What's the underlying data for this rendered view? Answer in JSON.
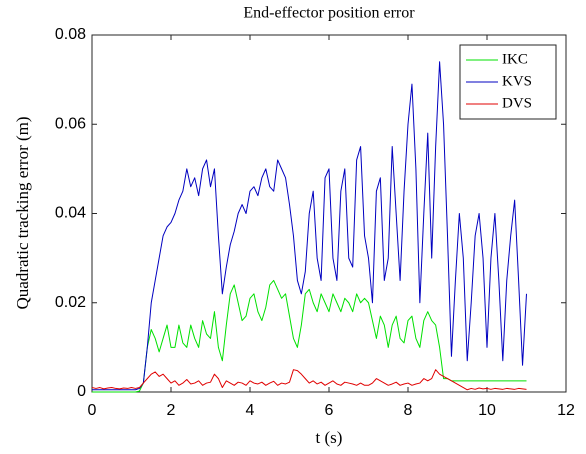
{
  "chart_data": {
    "type": "line",
    "title": "End-effector position error",
    "xlabel": "t (s)",
    "ylabel": "Quadratic tracking error (m)",
    "xlim": [
      0,
      12
    ],
    "xticks": [
      0,
      2,
      4,
      6,
      8,
      10,
      12
    ],
    "ylim": [
      0,
      0.08
    ],
    "yticks": [
      0,
      0.02,
      0.04,
      0.06,
      0.08
    ],
    "legend": "upper right",
    "x": [
      0,
      0.1,
      0.2,
      0.3,
      0.4,
      0.5,
      0.6,
      0.7,
      0.8,
      0.9,
      1,
      1.1,
      1.2,
      1.3,
      1.4,
      1.5,
      1.6,
      1.7,
      1.8,
      1.9,
      2,
      2.1,
      2.2,
      2.3,
      2.4,
      2.5,
      2.6,
      2.7,
      2.8,
      2.9,
      3,
      3.1,
      3.2,
      3.3,
      3.4,
      3.5,
      3.6,
      3.7,
      3.8,
      3.9,
      4,
      4.1,
      4.2,
      4.3,
      4.4,
      4.5,
      4.6,
      4.7,
      4.8,
      4.9,
      5,
      5.1,
      5.2,
      5.3,
      5.4,
      5.5,
      5.6,
      5.7,
      5.8,
      5.9,
      6,
      6.1,
      6.2,
      6.3,
      6.4,
      6.5,
      6.6,
      6.7,
      6.8,
      6.9,
      7,
      7.1,
      7.2,
      7.3,
      7.4,
      7.5,
      7.6,
      7.7,
      7.8,
      7.9,
      8,
      8.1,
      8.2,
      8.3,
      8.4,
      8.5,
      8.6,
      8.7,
      8.8,
      8.9,
      9,
      9.1,
      9.2,
      9.3,
      9.4,
      9.5,
      9.6,
      9.7,
      9.8,
      9.9,
      10,
      10.1,
      10.2,
      10.3,
      10.4,
      10.5,
      10.6,
      10.7,
      10.8,
      10.9,
      11
    ],
    "series": [
      {
        "name": "IKC",
        "color": "#00e000",
        "values": [
          0,
          0,
          0,
          0,
          0,
          0,
          0,
          0,
          0,
          0,
          0,
          0,
          0.0002,
          0.002,
          0.01,
          0.014,
          0.012,
          0.009,
          0.012,
          0.015,
          0.01,
          0.01,
          0.015,
          0.011,
          0.01,
          0.015,
          0.012,
          0.01,
          0.016,
          0.013,
          0.012,
          0.018,
          0.01,
          0.007,
          0.015,
          0.022,
          0.024,
          0.02,
          0.016,
          0.017,
          0.021,
          0.022,
          0.018,
          0.016,
          0.019,
          0.024,
          0.025,
          0.023,
          0.021,
          0.022,
          0.017,
          0.012,
          0.01,
          0.015,
          0.022,
          0.023,
          0.02,
          0.018,
          0.022,
          0.02,
          0.018,
          0.022,
          0.02,
          0.018,
          0.021,
          0.02,
          0.018,
          0.022,
          0.02,
          0.021,
          0.02,
          0.016,
          0.012,
          0.017,
          0.015,
          0.01,
          0.015,
          0.017,
          0.012,
          0.011,
          0.016,
          0.017,
          0.012,
          0.01,
          0.016,
          0.018,
          0.016,
          0.015,
          0.01,
          0.003,
          0.003,
          0.0025,
          0.0025,
          0.0025,
          0.0025,
          0.0025,
          0.0025,
          0.0025,
          0.0025,
          0.0025,
          0.0025,
          0.0025,
          0.0025,
          0.0025,
          0.0025,
          0.0025,
          0.0025,
          0.0025,
          0.0025,
          0.0025,
          0.0025
        ]
      },
      {
        "name": "KVS",
        "color": "#0000c0",
        "values": [
          0.0005,
          0.0005,
          0.0005,
          0.0005,
          0.0005,
          0.0005,
          0.0005,
          0.0005,
          0.0005,
          0.0005,
          0.0005,
          0.0005,
          0.0008,
          0.002,
          0.01,
          0.02,
          0.025,
          0.03,
          0.035,
          0.037,
          0.038,
          0.04,
          0.043,
          0.045,
          0.05,
          0.046,
          0.048,
          0.044,
          0.05,
          0.052,
          0.046,
          0.05,
          0.035,
          0.022,
          0.028,
          0.033,
          0.036,
          0.04,
          0.042,
          0.04,
          0.045,
          0.046,
          0.044,
          0.048,
          0.05,
          0.046,
          0.045,
          0.052,
          0.05,
          0.048,
          0.042,
          0.035,
          0.025,
          0.022,
          0.027,
          0.04,
          0.045,
          0.03,
          0.025,
          0.048,
          0.05,
          0.03,
          0.025,
          0.045,
          0.05,
          0.03,
          0.028,
          0.052,
          0.055,
          0.035,
          0.03,
          0.02,
          0.045,
          0.048,
          0.025,
          0.03,
          0.055,
          0.04,
          0.025,
          0.045,
          0.06,
          0.069,
          0.05,
          0.02,
          0.04,
          0.058,
          0.03,
          0.055,
          0.074,
          0.06,
          0.035,
          0.008,
          0.025,
          0.04,
          0.03,
          0.007,
          0.02,
          0.035,
          0.04,
          0.03,
          0.01,
          0.03,
          0.04,
          0.025,
          0.007,
          0.025,
          0.035,
          0.043,
          0.025,
          0.006,
          0.022
        ]
      },
      {
        "name": "DVS",
        "color": "#e00000",
        "values": [
          0.001,
          0.0008,
          0.001,
          0.0007,
          0.0009,
          0.001,
          0.0008,
          0.0007,
          0.0009,
          0.0008,
          0.001,
          0.0008,
          0.001,
          0.002,
          0.003,
          0.004,
          0.0045,
          0.0035,
          0.004,
          0.003,
          0.002,
          0.0025,
          0.0015,
          0.002,
          0.0028,
          0.0018,
          0.002,
          0.0025,
          0.0015,
          0.002,
          0.0022,
          0.004,
          0.003,
          0.001,
          0.0025,
          0.002,
          0.0015,
          0.0022,
          0.002,
          0.0015,
          0.0025,
          0.002,
          0.0018,
          0.0022,
          0.0015,
          0.002,
          0.0024,
          0.0015,
          0.002,
          0.0018,
          0.0022,
          0.005,
          0.0048,
          0.004,
          0.003,
          0.002,
          0.0025,
          0.0018,
          0.0022,
          0.0015,
          0.002,
          0.0025,
          0.0018,
          0.0015,
          0.0022,
          0.002,
          0.0018,
          0.0015,
          0.002,
          0.0015,
          0.0015,
          0.002,
          0.003,
          0.0025,
          0.002,
          0.0015,
          0.0018,
          0.0022,
          0.0015,
          0.0018,
          0.002,
          0.0015,
          0.0018,
          0.002,
          0.003,
          0.0025,
          0.003,
          0.005,
          0.004,
          0.0035,
          0.003,
          0.0025,
          0.002,
          0.0015,
          0.001,
          0.0005,
          0.0008,
          0.0006,
          0.0009,
          0.0007,
          0.0008,
          0.0006,
          0.0008,
          0.0007,
          0.0006,
          0.0008,
          0.0007,
          0.0006,
          0.0008,
          0.0007,
          0.0006
        ]
      }
    ]
  }
}
